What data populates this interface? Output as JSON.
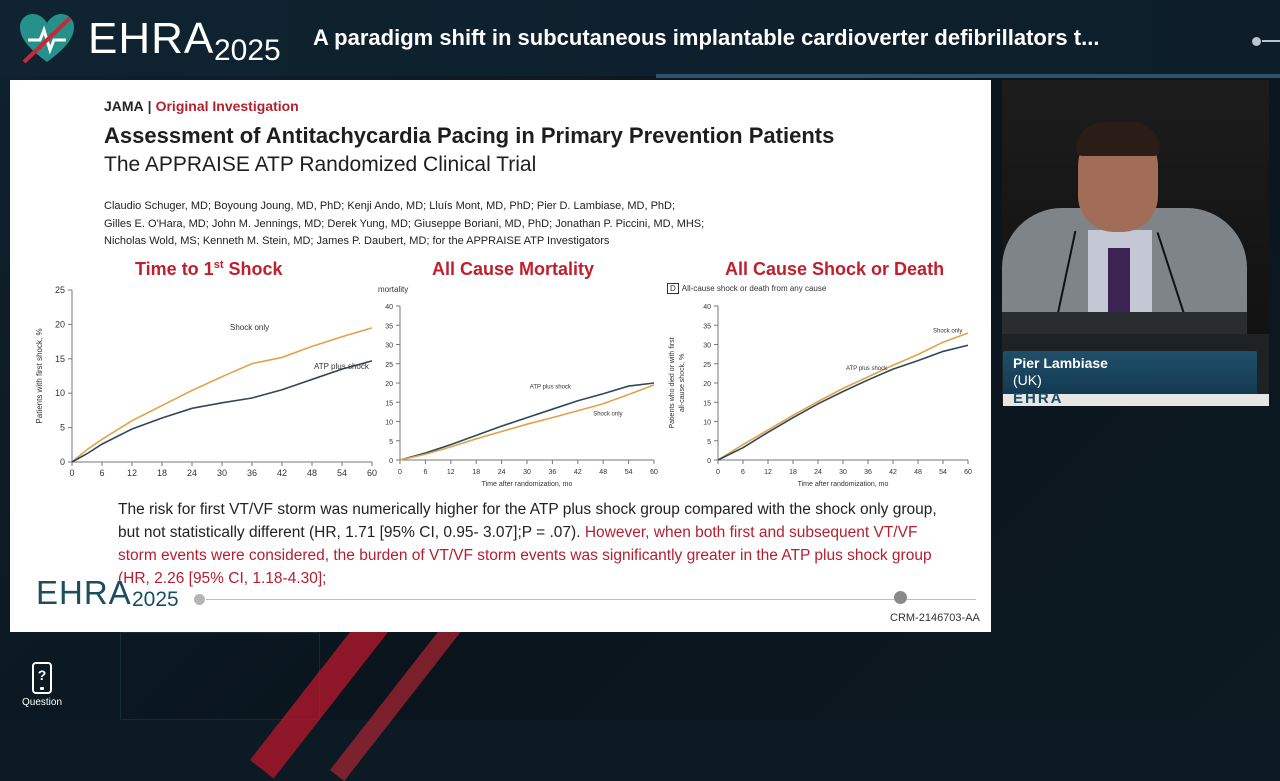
{
  "header": {
    "logo_text": "EHRA",
    "logo_year": "2025",
    "talk_title": "A paradigm shift in subcutaneous implantable cardioverter defibrillators t..."
  },
  "slide": {
    "journal": "JAMA",
    "separator": "|",
    "section": "Original Investigation",
    "title": "Assessment of Antitachycardia Pacing in Primary Prevention Patients",
    "subtitle": "The APPRAISE ATP Randomized Clinical Trial",
    "authors": [
      "Claudio Schuger, MD; Boyoung Joung, MD, PhD; Kenji Ando, MD; Lluís Mont, MD, PhD; Pier D. Lambiase, MD, PhD;",
      "Gilles E. O'Hara, MD; John M. Jennings, MD; Derek Yung, MD; Giuseppe Boriani, MD, PhD; Jonathan P. Piccini, MD, MHS;",
      "Nicholas Wold, MS; Kenneth M. Stein, MD; James P. Daubert, MD; for the APPRAISE ATP Investigators"
    ],
    "body_black": "The risk for first VT/VF storm was numerically higher for the ATP plus shock group compared with the shock only group, but not statistically different (HR, 1.71 [95% CI, 0.95- 3.07];P = .07).",
    "body_red": " However, when both first and subsequent VT/VF storm events were considered, the burden of VT/VF storm events was significantly greater in the ATP plus shock group (HR, 2.26 [95% CI, 1.18-4.30];",
    "footer_logo": "EHRA",
    "footer_year": "2025",
    "code": "CRM-2146703-AA"
  },
  "speaker": {
    "name": "Pier Lambiase",
    "country": "(UK)",
    "backdrop_text": "EHRA"
  },
  "question": {
    "icon_glyph": "?",
    "label": "Question"
  },
  "colors": {
    "shock_only": "#e0a24a",
    "atp_plus_shock": "#2f4858",
    "accent_red": "#c0202e"
  },
  "chart_data": [
    {
      "type": "line",
      "title": "Time to 1st Shock",
      "title_main": "Time to 1",
      "title_sup": "st",
      "title_end": " Shock",
      "ylabel": "Patients with first shock, %",
      "xlim": [
        0,
        60
      ],
      "ylim": [
        0,
        25
      ],
      "xticks": [
        0,
        6,
        12,
        18,
        24,
        30,
        36,
        42,
        48,
        54,
        60
      ],
      "yticks": [
        0,
        5,
        10,
        15,
        20,
        25
      ],
      "series": [
        {
          "name": "Shock only",
          "color": "#e0a24a",
          "x": [
            0,
            3,
            6,
            12,
            18,
            24,
            30,
            36,
            42,
            48,
            54,
            60
          ],
          "y": [
            0,
            1.8,
            3.3,
            6.0,
            8.2,
            10.4,
            12.4,
            14.3,
            15.2,
            16.8,
            18.2,
            19.5
          ]
        },
        {
          "name": "ATP plus shock",
          "color": "#2f4858",
          "x": [
            0,
            3,
            6,
            12,
            18,
            24,
            30,
            36,
            42,
            48,
            54,
            60
          ],
          "y": [
            0,
            1.2,
            2.6,
            4.8,
            6.4,
            7.8,
            8.6,
            9.3,
            10.5,
            12.0,
            13.5,
            14.7
          ]
        }
      ]
    },
    {
      "type": "line",
      "title": "All Cause Mortality",
      "panel_label": "mortality",
      "xlabel": "Time after randomization, mo",
      "xlim": [
        0,
        60
      ],
      "ylim": [
        0,
        40
      ],
      "xticks": [
        0,
        6,
        12,
        18,
        24,
        30,
        36,
        42,
        48,
        54,
        60
      ],
      "yticks": [
        0,
        5,
        10,
        15,
        20,
        25,
        30,
        35,
        40
      ],
      "series": [
        {
          "name": "ATP plus shock",
          "color": "#2f4858",
          "x": [
            0,
            6,
            12,
            18,
            24,
            30,
            36,
            42,
            48,
            54,
            60
          ],
          "y": [
            0,
            1.8,
            4.0,
            6.4,
            8.8,
            11.0,
            13.2,
            15.4,
            17.2,
            19.2,
            20.0
          ]
        },
        {
          "name": "Shock only",
          "color": "#e0a24a",
          "x": [
            0,
            6,
            12,
            18,
            24,
            30,
            36,
            42,
            48,
            54,
            60
          ],
          "y": [
            0,
            1.5,
            3.4,
            5.5,
            7.4,
            9.3,
            11.0,
            12.8,
            14.6,
            17.0,
            19.5
          ]
        }
      ]
    },
    {
      "type": "line",
      "title": "All Cause Shock or Death",
      "panel_label": "D",
      "panel_caption": "All-cause shock or death from any cause",
      "ylabel": "Patients who died or with first all-cause shock, %",
      "ylabel_line1": "Patients who died or with first",
      "ylabel_line2": "all-cause shock, %",
      "xlabel": "Time after randomization, mo",
      "xlim": [
        0,
        60
      ],
      "ylim": [
        0,
        40
      ],
      "xticks": [
        0,
        6,
        12,
        18,
        24,
        30,
        36,
        42,
        48,
        54,
        60
      ],
      "yticks": [
        0,
        5,
        10,
        15,
        20,
        25,
        30,
        35,
        40
      ],
      "series": [
        {
          "name": "Shock only",
          "color": "#e0a24a",
          "x": [
            0,
            6,
            12,
            18,
            24,
            30,
            36,
            42,
            48,
            54,
            60
          ],
          "y": [
            0,
            4.0,
            7.8,
            11.6,
            15.2,
            18.6,
            21.6,
            24.6,
            27.4,
            30.6,
            33.0
          ]
        },
        {
          "name": "ATP plus shock",
          "color": "#2f4858",
          "x": [
            0,
            6,
            12,
            18,
            24,
            30,
            36,
            42,
            48,
            54,
            60
          ],
          "y": [
            0,
            3.2,
            7.2,
            11.0,
            14.6,
            17.8,
            20.8,
            23.6,
            25.8,
            28.2,
            29.8
          ]
        }
      ]
    }
  ]
}
